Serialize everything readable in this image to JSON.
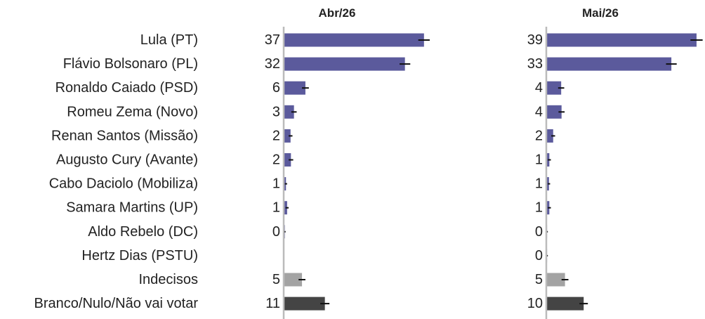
{
  "chart_data": {
    "type": "bar",
    "orientation": "horizontal",
    "error_bars": true,
    "categories": [
      "Lula (PT)",
      "Flávio Bolsonaro (PL)",
      "Ronaldo Caiado (PSD)",
      "Romeu Zema (Novo)",
      "Renan Santos (Missão)",
      "Augusto Cury (Avante)",
      "Cabo Daciolo (Mobiliza)",
      "Samara Martins (UP)",
      "Aldo Rebelo (DC)",
      "Hertz Dias (PSTU)",
      "Indecisos",
      "Branco/Nulo/Não vai votar"
    ],
    "category_colors": [
      "#5b5a9c",
      "#5b5a9c",
      "#5b5a9c",
      "#5b5a9c",
      "#5b5a9c",
      "#5b5a9c",
      "#5b5a9c",
      "#5b5a9c",
      "#5b5a9c",
      "#5b5a9c",
      "#a3a3a3",
      "#444444"
    ],
    "panels": [
      {
        "title": "Abr/26",
        "values": [
          37,
          32,
          6,
          3,
          2,
          2,
          1,
          1,
          0,
          null,
          5,
          11
        ],
        "exact": [
          36.8,
          31.8,
          5.7,
          2.7,
          1.8,
          1.9,
          0.6,
          0.9,
          0.3,
          null,
          4.8,
          10.8
        ],
        "error": [
          1.5,
          1.4,
          0.9,
          0.7,
          0.5,
          0.6,
          0.3,
          0.4,
          0.2,
          null,
          0.9,
          1.2
        ]
      },
      {
        "title": "Mai/26",
        "values": [
          39,
          33,
          4,
          4,
          2,
          1,
          1,
          1,
          0,
          0,
          5,
          10
        ],
        "exact": [
          39.4,
          32.8,
          3.9,
          4.0,
          1.8,
          0.8,
          0.7,
          0.8,
          0.2,
          0.2,
          4.9,
          9.8
        ],
        "error": [
          1.6,
          1.4,
          0.8,
          0.8,
          0.5,
          0.4,
          0.3,
          0.4,
          0.2,
          0.2,
          0.9,
          1.1
        ]
      }
    ],
    "xlim": [
      0,
      40
    ]
  },
  "colors": {
    "candidate_bar": "#5b5a9c",
    "undecided_bar": "#a3a3a3",
    "blank_bar": "#444444",
    "axis": "#bbbbbb",
    "error_bar": "#111111"
  }
}
